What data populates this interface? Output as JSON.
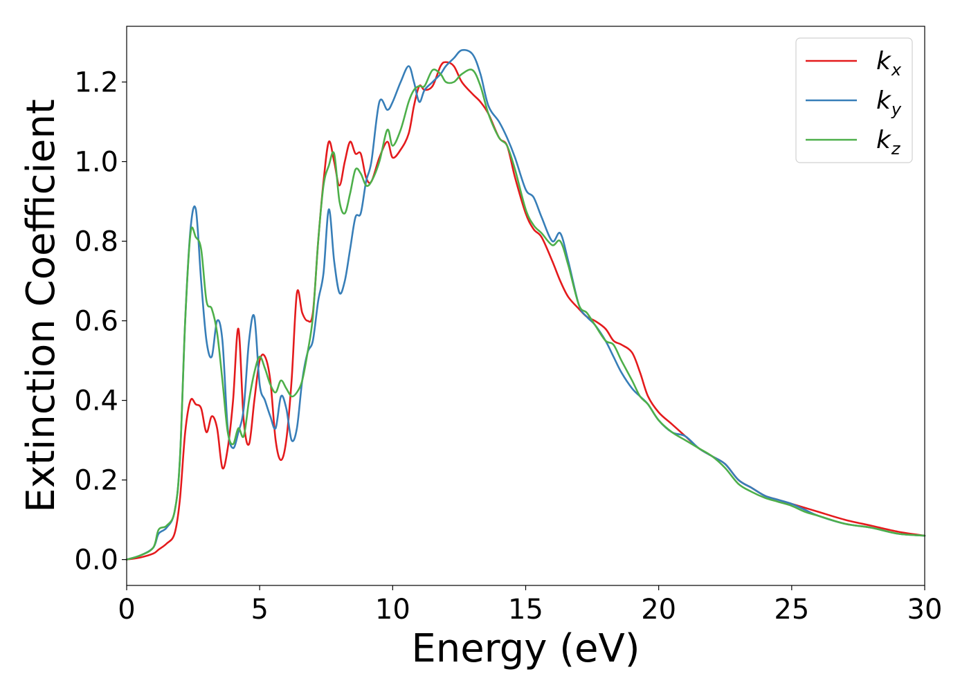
{
  "chart_data": {
    "type": "line",
    "xlabel": "Energy (eV)",
    "ylabel": "Extinction Coefficient",
    "xlim": [
      0,
      30
    ],
    "ylim": [
      -0.065,
      1.34
    ],
    "xticks": [
      0,
      5,
      10,
      15,
      20,
      25,
      30
    ],
    "yticks": [
      0.0,
      0.2,
      0.4,
      0.6,
      0.8,
      1.0,
      1.2
    ],
    "grid": false,
    "legend_position": "top-right",
    "series": [
      {
        "name": "k_x",
        "label_main": "k",
        "label_sub": "x",
        "color": "#e41a1c",
        "x": [
          0,
          0.5,
          1.0,
          1.2,
          1.5,
          1.8,
          2.0,
          2.2,
          2.4,
          2.6,
          2.8,
          3.0,
          3.2,
          3.4,
          3.6,
          3.8,
          4.0,
          4.2,
          4.4,
          4.6,
          4.8,
          5.0,
          5.2,
          5.4,
          5.6,
          5.8,
          6.0,
          6.2,
          6.4,
          6.6,
          6.8,
          7.0,
          7.2,
          7.4,
          7.6,
          7.8,
          8.0,
          8.2,
          8.4,
          8.6,
          8.8,
          9.0,
          9.2,
          9.5,
          9.8,
          10.0,
          10.3,
          10.6,
          10.8,
          11.0,
          11.2,
          11.5,
          11.8,
          12.0,
          12.3,
          12.6,
          13.0,
          13.3,
          13.6,
          14.0,
          14.3,
          14.6,
          15.0,
          15.3,
          15.6,
          16.0,
          16.3,
          16.6,
          17.0,
          17.3,
          17.6,
          18.0,
          18.3,
          18.6,
          19.0,
          19.3,
          19.6,
          20.0,
          20.5,
          21.0,
          21.5,
          22.0,
          22.5,
          23.0,
          23.5,
          24.0,
          24.5,
          25.0,
          25.5,
          26.0,
          27.0,
          28.0,
          29.0,
          30.0
        ],
        "y": [
          0.0,
          0.005,
          0.015,
          0.025,
          0.04,
          0.065,
          0.15,
          0.32,
          0.4,
          0.39,
          0.38,
          0.32,
          0.36,
          0.33,
          0.23,
          0.28,
          0.4,
          0.58,
          0.35,
          0.29,
          0.4,
          0.5,
          0.51,
          0.45,
          0.3,
          0.25,
          0.3,
          0.45,
          0.67,
          0.62,
          0.6,
          0.62,
          0.8,
          0.95,
          1.05,
          1.0,
          0.94,
          1.0,
          1.05,
          1.02,
          1.02,
          0.96,
          0.95,
          1.01,
          1.05,
          1.01,
          1.03,
          1.07,
          1.14,
          1.19,
          1.18,
          1.19,
          1.24,
          1.25,
          1.24,
          1.2,
          1.17,
          1.15,
          1.12,
          1.06,
          1.04,
          0.96,
          0.87,
          0.83,
          0.81,
          0.75,
          0.7,
          0.66,
          0.63,
          0.61,
          0.6,
          0.58,
          0.55,
          0.54,
          0.52,
          0.47,
          0.41,
          0.37,
          0.34,
          0.31,
          0.28,
          0.26,
          0.24,
          0.2,
          0.18,
          0.16,
          0.15,
          0.14,
          0.13,
          0.12,
          0.1,
          0.085,
          0.07,
          0.06
        ]
      },
      {
        "name": "k_y",
        "label_main": "k",
        "label_sub": "y",
        "color": "#377eb8",
        "x": [
          0,
          0.5,
          1.0,
          1.2,
          1.5,
          1.8,
          2.0,
          2.2,
          2.4,
          2.6,
          2.8,
          3.0,
          3.2,
          3.4,
          3.6,
          3.8,
          4.0,
          4.2,
          4.4,
          4.6,
          4.8,
          5.0,
          5.2,
          5.4,
          5.6,
          5.8,
          6.0,
          6.2,
          6.4,
          6.6,
          6.8,
          7.0,
          7.2,
          7.4,
          7.6,
          7.8,
          8.0,
          8.2,
          8.4,
          8.6,
          8.8,
          9.0,
          9.2,
          9.5,
          9.8,
          10.0,
          10.3,
          10.6,
          10.8,
          11.0,
          11.2,
          11.5,
          11.8,
          12.0,
          12.3,
          12.6,
          13.0,
          13.3,
          13.6,
          14.0,
          14.3,
          14.6,
          15.0,
          15.3,
          15.6,
          16.0,
          16.3,
          16.6,
          17.0,
          17.3,
          17.6,
          18.0,
          18.3,
          18.6,
          19.0,
          19.3,
          19.6,
          20.0,
          20.5,
          21.0,
          21.5,
          22.0,
          22.5,
          23.0,
          23.5,
          24.0,
          24.5,
          25.0,
          25.5,
          26.0,
          27.0,
          28.0,
          29.0,
          30.0
        ],
        "y": [
          0.0,
          0.01,
          0.03,
          0.065,
          0.08,
          0.12,
          0.25,
          0.6,
          0.83,
          0.88,
          0.7,
          0.55,
          0.51,
          0.6,
          0.55,
          0.33,
          0.28,
          0.32,
          0.38,
          0.55,
          0.61,
          0.44,
          0.4,
          0.36,
          0.33,
          0.41,
          0.38,
          0.3,
          0.33,
          0.45,
          0.52,
          0.55,
          0.65,
          0.72,
          0.88,
          0.75,
          0.67,
          0.7,
          0.78,
          0.86,
          0.87,
          0.95,
          1.0,
          1.15,
          1.13,
          1.15,
          1.2,
          1.24,
          1.2,
          1.15,
          1.18,
          1.2,
          1.22,
          1.24,
          1.26,
          1.28,
          1.27,
          1.22,
          1.14,
          1.1,
          1.06,
          1.01,
          0.93,
          0.91,
          0.86,
          0.8,
          0.82,
          0.75,
          0.64,
          0.61,
          0.59,
          0.55,
          0.51,
          0.47,
          0.43,
          0.41,
          0.39,
          0.35,
          0.32,
          0.31,
          0.28,
          0.26,
          0.24,
          0.2,
          0.18,
          0.16,
          0.15,
          0.14,
          0.125,
          0.11,
          0.09,
          0.08,
          0.065,
          0.06
        ]
      },
      {
        "name": "k_z",
        "label_main": "k",
        "label_sub": "z",
        "color": "#4daf4a",
        "x": [
          0,
          0.5,
          1.0,
          1.2,
          1.5,
          1.8,
          2.0,
          2.2,
          2.4,
          2.6,
          2.8,
          3.0,
          3.2,
          3.4,
          3.6,
          3.8,
          4.0,
          4.2,
          4.4,
          4.6,
          4.8,
          5.0,
          5.2,
          5.4,
          5.6,
          5.8,
          6.0,
          6.2,
          6.4,
          6.6,
          6.8,
          7.0,
          7.2,
          7.4,
          7.6,
          7.8,
          8.0,
          8.2,
          8.4,
          8.6,
          8.8,
          9.0,
          9.2,
          9.5,
          9.8,
          10.0,
          10.3,
          10.6,
          10.8,
          11.0,
          11.2,
          11.5,
          11.8,
          12.0,
          12.3,
          12.6,
          13.0,
          13.3,
          13.6,
          14.0,
          14.3,
          14.6,
          15.0,
          15.3,
          15.6,
          16.0,
          16.3,
          16.6,
          17.0,
          17.3,
          17.6,
          18.0,
          18.3,
          18.6,
          19.0,
          19.3,
          19.6,
          20.0,
          20.5,
          21.0,
          21.5,
          22.0,
          22.5,
          23.0,
          23.5,
          24.0,
          24.5,
          25.0,
          25.5,
          26.0,
          27.0,
          28.0,
          29.0,
          30.0
        ],
        "y": [
          0.0,
          0.01,
          0.03,
          0.075,
          0.085,
          0.12,
          0.25,
          0.6,
          0.82,
          0.81,
          0.78,
          0.65,
          0.63,
          0.57,
          0.45,
          0.32,
          0.29,
          0.33,
          0.31,
          0.4,
          0.47,
          0.51,
          0.48,
          0.44,
          0.42,
          0.45,
          0.43,
          0.41,
          0.42,
          0.45,
          0.52,
          0.61,
          0.8,
          0.94,
          0.99,
          1.02,
          0.9,
          0.87,
          0.92,
          0.98,
          0.97,
          0.94,
          0.95,
          1.0,
          1.08,
          1.04,
          1.08,
          1.15,
          1.18,
          1.19,
          1.19,
          1.23,
          1.22,
          1.2,
          1.2,
          1.22,
          1.23,
          1.19,
          1.12,
          1.06,
          1.04,
          0.98,
          0.88,
          0.84,
          0.82,
          0.79,
          0.8,
          0.74,
          0.64,
          0.62,
          0.59,
          0.55,
          0.54,
          0.5,
          0.45,
          0.41,
          0.39,
          0.35,
          0.32,
          0.3,
          0.28,
          0.26,
          0.23,
          0.19,
          0.17,
          0.155,
          0.145,
          0.135,
          0.12,
          0.11,
          0.09,
          0.08,
          0.065,
          0.06
        ]
      }
    ]
  }
}
